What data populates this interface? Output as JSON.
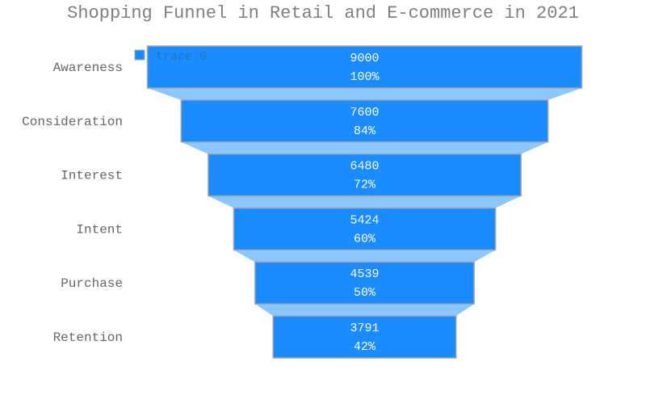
{
  "chart_data": {
    "type": "funnel",
    "title": "Shopping Funnel in Retail and E-commerce in 2021",
    "categories": [
      "Awareness",
      "Consideration",
      "Interest",
      "Intent",
      "Purchase",
      "Retention"
    ],
    "values": [
      9000,
      7600,
      6480,
      5424,
      4539,
      3791
    ],
    "percent_labels": [
      "100%",
      "84%",
      "72%",
      "60%",
      "50%",
      "42%"
    ],
    "series": [
      {
        "name": "trace 0",
        "values": [
          9000,
          7600,
          6480,
          5424,
          4539,
          3791
        ]
      }
    ],
    "legend": "top-left",
    "colors": {
      "bar": "#1a8cff",
      "bar_border": "#a6a6a6",
      "connector": "#8cc6ff",
      "title": "#7f7f7f",
      "label": "#666666"
    }
  }
}
